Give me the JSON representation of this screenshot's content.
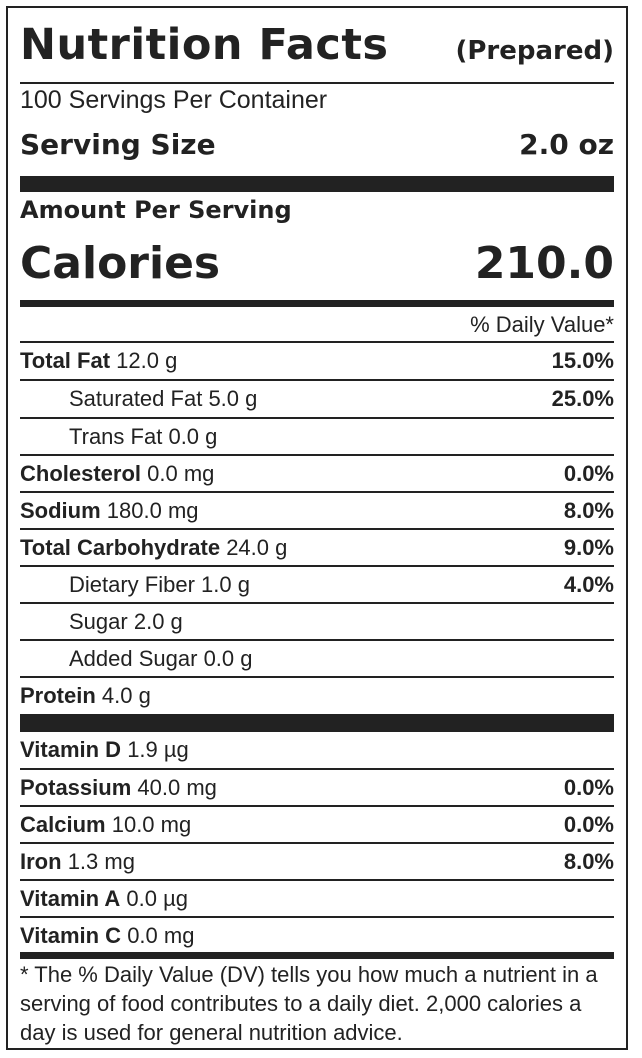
{
  "header": {
    "title": "Nutrition Facts",
    "subtitle": "(Prepared)"
  },
  "servings_per_container": "100 Servings Per Container",
  "serving_size": {
    "label": "Serving Size",
    "value": "2.0 oz"
  },
  "amount_per_serving": "Amount Per Serving",
  "calories": {
    "label": "Calories",
    "value": "210.0"
  },
  "daily_value_header": "% Daily Value*",
  "nutrients": [
    {
      "name": "Total Fat",
      "amount": "12.0 g",
      "dv": "15.0%"
    },
    {
      "name": "Saturated Fat",
      "amount": "5.0 g",
      "dv": "25.0%"
    },
    {
      "name": "Trans Fat",
      "amount": "0.0 g",
      "dv": ""
    },
    {
      "name": "Cholesterol",
      "amount": "0.0 mg",
      "dv": "0.0%"
    },
    {
      "name": "Sodium",
      "amount": "180.0 mg",
      "dv": "8.0%"
    },
    {
      "name": "Total Carbohydrate",
      "amount": "24.0 g",
      "dv": "9.0%"
    },
    {
      "name": "Dietary Fiber",
      "amount": "1.0 g",
      "dv": "4.0%"
    },
    {
      "name": "Sugar",
      "amount": "2.0 g",
      "dv": ""
    },
    {
      "name": "Added Sugar",
      "amount": "0.0 g",
      "dv": ""
    },
    {
      "name": "Protein",
      "amount": "4.0 g",
      "dv": ""
    }
  ],
  "vitamins": [
    {
      "name": "Vitamin D",
      "amount": "1.9 µg",
      "dv": ""
    },
    {
      "name": "Potassium",
      "amount": "40.0 mg",
      "dv": "0.0%"
    },
    {
      "name": "Calcium",
      "amount": "10.0 mg",
      "dv": "0.0%"
    },
    {
      "name": "Iron",
      "amount": "1.3 mg",
      "dv": "8.0%"
    },
    {
      "name": "Vitamin A",
      "amount": "0.0 µg",
      "dv": ""
    },
    {
      "name": "Vitamin C",
      "amount": "0.0 mg",
      "dv": ""
    }
  ],
  "footnote": "* The % Daily Value (DV) tells you how much a nutrient in a serving of food contributes to a daily diet. 2,000 calories a day is used for general nutrition advice."
}
